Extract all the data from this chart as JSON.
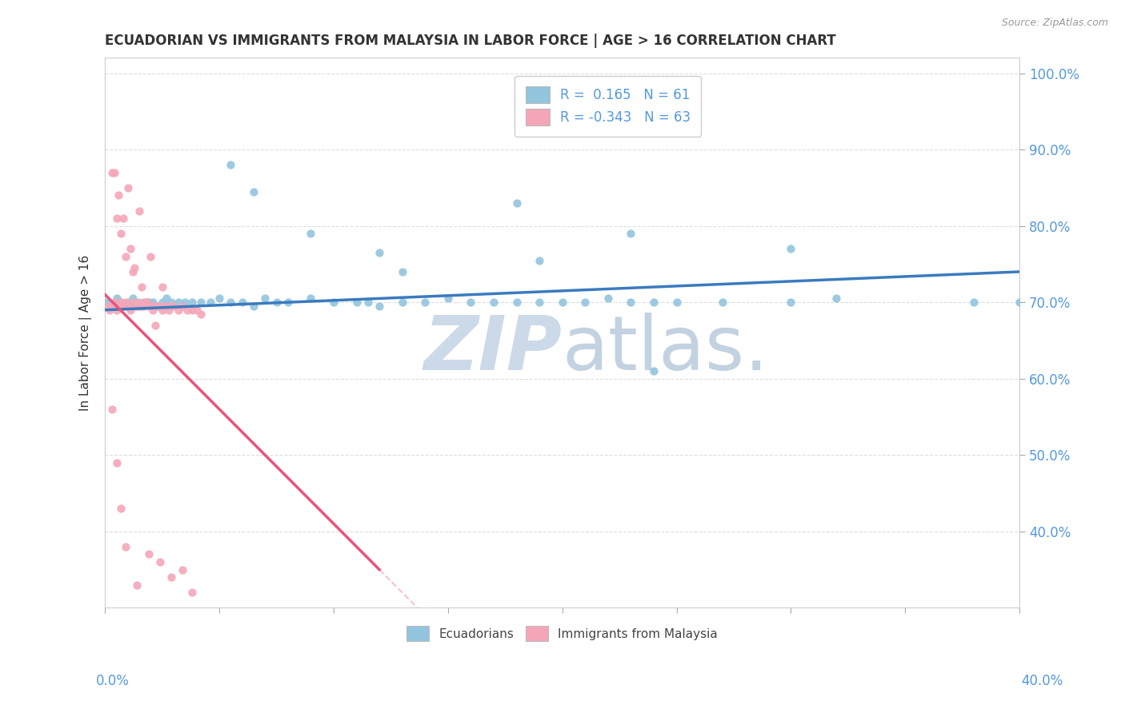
{
  "title": "ECUADORIAN VS IMMIGRANTS FROM MALAYSIA IN LABOR FORCE | AGE > 16 CORRELATION CHART",
  "source": "Source: ZipAtlas.com",
  "ylabel_label": "In Labor Force | Age > 16",
  "legend_label1": "Ecuadorians",
  "legend_label2": "Immigrants from Malaysia",
  "R1": 0.165,
  "N1": 61,
  "R2": -0.343,
  "N2": 63,
  "color_blue": "#92c5de",
  "color_pink": "#f4a6b8",
  "color_blue_line": "#3a7bbf",
  "color_pink_line": "#e8547a",
  "title_color": "#333333",
  "axis_label_color": "#5599dd",
  "watermark_color": "#ccd9e8",
  "xlim": [
    0.0,
    0.4
  ],
  "ylim": [
    0.3,
    1.02
  ],
  "yticks": [
    0.4,
    0.5,
    0.6,
    0.7,
    0.8,
    0.9,
    1.0
  ],
  "blue_x": [
    0.001,
    0.003,
    0.005,
    0.007,
    0.009,
    0.01,
    0.012,
    0.013,
    0.015,
    0.017,
    0.019,
    0.021,
    0.023,
    0.025,
    0.027,
    0.029,
    0.032,
    0.035,
    0.038,
    0.042,
    0.046,
    0.05,
    0.055,
    0.06,
    0.065,
    0.07,
    0.075,
    0.08,
    0.09,
    0.1,
    0.11,
    0.115,
    0.12,
    0.13,
    0.14,
    0.15,
    0.16,
    0.17,
    0.18,
    0.19,
    0.2,
    0.21,
    0.22,
    0.23,
    0.24,
    0.25,
    0.27,
    0.3,
    0.32,
    0.38,
    0.4,
    0.065,
    0.09,
    0.12,
    0.18,
    0.23,
    0.3,
    0.19,
    0.055,
    0.13,
    0.24
  ],
  "blue_y": [
    0.7,
    0.695,
    0.705,
    0.7,
    0.695,
    0.7,
    0.705,
    0.7,
    0.695,
    0.7,
    0.7,
    0.7,
    0.695,
    0.7,
    0.705,
    0.7,
    0.7,
    0.7,
    0.7,
    0.7,
    0.7,
    0.705,
    0.7,
    0.7,
    0.695,
    0.705,
    0.7,
    0.7,
    0.705,
    0.7,
    0.7,
    0.7,
    0.695,
    0.7,
    0.7,
    0.705,
    0.7,
    0.7,
    0.7,
    0.7,
    0.7,
    0.7,
    0.705,
    0.7,
    0.7,
    0.7,
    0.7,
    0.7,
    0.705,
    0.7,
    0.7,
    0.845,
    0.79,
    0.765,
    0.83,
    0.79,
    0.77,
    0.755,
    0.88,
    0.74,
    0.61
  ],
  "pink_x": [
    0.001,
    0.002,
    0.003,
    0.004,
    0.005,
    0.006,
    0.007,
    0.008,
    0.009,
    0.01,
    0.011,
    0.012,
    0.013,
    0.014,
    0.015,
    0.016,
    0.017,
    0.018,
    0.019,
    0.02,
    0.021,
    0.022,
    0.023,
    0.024,
    0.025,
    0.026,
    0.027,
    0.028,
    0.029,
    0.03,
    0.032,
    0.034,
    0.036,
    0.038,
    0.04,
    0.042,
    0.01,
    0.015,
    0.02,
    0.025,
    0.003,
    0.005,
    0.007,
    0.009,
    0.012,
    0.016,
    0.018,
    0.022,
    0.004,
    0.006,
    0.008,
    0.011,
    0.013,
    0.003,
    0.005,
    0.007,
    0.009,
    0.014,
    0.019,
    0.024,
    0.029,
    0.034,
    0.038
  ],
  "pink_y": [
    0.695,
    0.69,
    0.695,
    0.7,
    0.69,
    0.695,
    0.7,
    0.695,
    0.7,
    0.695,
    0.69,
    0.7,
    0.695,
    0.695,
    0.7,
    0.695,
    0.695,
    0.7,
    0.695,
    0.695,
    0.69,
    0.695,
    0.695,
    0.695,
    0.69,
    0.695,
    0.695,
    0.69,
    0.695,
    0.695,
    0.69,
    0.695,
    0.69,
    0.69,
    0.69,
    0.685,
    0.85,
    0.82,
    0.76,
    0.72,
    0.87,
    0.81,
    0.79,
    0.76,
    0.74,
    0.72,
    0.7,
    0.67,
    0.87,
    0.84,
    0.81,
    0.77,
    0.745,
    0.56,
    0.49,
    0.43,
    0.38,
    0.33,
    0.37,
    0.36,
    0.34,
    0.35,
    0.32
  ],
  "blue_line_x0": 0.0,
  "blue_line_x1": 0.4,
  "blue_line_y0": 0.69,
  "blue_line_y1": 0.74,
  "pink_line_solid_x0": 0.0,
  "pink_line_solid_x1": 0.12,
  "pink_line_y0": 0.71,
  "pink_line_y1": 0.35,
  "pink_line_dashed_x1": 0.38
}
